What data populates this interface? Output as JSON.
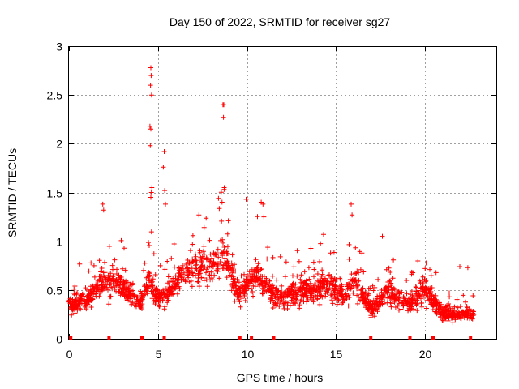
{
  "chart_data": {
    "type": "scatter",
    "title": "Day 150 of 2022, SRMTID for receiver sg27",
    "xlabel": "GPS time / hours",
    "ylabel": "SRMTID / TECUs",
    "xlim": [
      0,
      24
    ],
    "ylim": [
      0,
      3
    ],
    "xticks": [
      0,
      5,
      10,
      15,
      20
    ],
    "yticks": [
      0,
      0.5,
      1,
      1.5,
      2,
      2.5,
      3
    ],
    "xtick_labels": [
      "0",
      "5",
      "10",
      "15",
      "20"
    ],
    "ytick_labels": [
      "0",
      "0.5",
      "1",
      "1.5",
      "2",
      "2.5",
      "3"
    ],
    "grid": true,
    "marker": "+",
    "color": "#ff0000",
    "series": [
      {
        "name": "SRMTID",
        "x_start": 0.0,
        "x_end": 22.75,
        "baseline_profile": [
          [
            0.0,
            0.35
          ],
          [
            1.0,
            0.4
          ],
          [
            2.0,
            0.6
          ],
          [
            3.0,
            0.55
          ],
          [
            4.0,
            0.35
          ],
          [
            4.5,
            0.6
          ],
          [
            5.0,
            0.4
          ],
          [
            6.0,
            0.55
          ],
          [
            7.0,
            0.75
          ],
          [
            8.0,
            0.75
          ],
          [
            8.7,
            0.85
          ],
          [
            9.5,
            0.45
          ],
          [
            10.5,
            0.65
          ],
          [
            11.5,
            0.45
          ],
          [
            12.5,
            0.45
          ],
          [
            13.5,
            0.5
          ],
          [
            14.5,
            0.55
          ],
          [
            15.5,
            0.45
          ],
          [
            16.0,
            0.6
          ],
          [
            17.0,
            0.3
          ],
          [
            18.0,
            0.5
          ],
          [
            19.0,
            0.35
          ],
          [
            20.0,
            0.5
          ],
          [
            21.0,
            0.25
          ],
          [
            22.75,
            0.25
          ]
        ],
        "spikes": [
          {
            "x": 4.6,
            "y": 2.78
          },
          {
            "x": 4.62,
            "y": 2.7
          },
          {
            "x": 4.58,
            "y": 2.6
          },
          {
            "x": 4.64,
            "y": 2.5
          },
          {
            "x": 4.55,
            "y": 2.18
          },
          {
            "x": 4.6,
            "y": 2.15
          },
          {
            "x": 4.57,
            "y": 1.98
          },
          {
            "x": 4.66,
            "y": 1.55
          },
          {
            "x": 4.63,
            "y": 1.5
          },
          {
            "x": 4.6,
            "y": 1.45
          },
          {
            "x": 5.35,
            "y": 1.92
          },
          {
            "x": 5.3,
            "y": 1.76
          },
          {
            "x": 5.38,
            "y": 1.52
          },
          {
            "x": 5.42,
            "y": 1.38
          },
          {
            "x": 8.65,
            "y": 2.4
          },
          {
            "x": 8.7,
            "y": 2.4
          },
          {
            "x": 8.68,
            "y": 2.27
          },
          {
            "x": 8.72,
            "y": 1.55
          },
          {
            "x": 8.6,
            "y": 1.4
          },
          {
            "x": 9.95,
            "y": 1.43
          },
          {
            "x": 10.8,
            "y": 1.4
          },
          {
            "x": 10.9,
            "y": 1.38
          },
          {
            "x": 10.95,
            "y": 1.25
          },
          {
            "x": 1.9,
            "y": 1.38
          },
          {
            "x": 1.95,
            "y": 1.32
          },
          {
            "x": 15.85,
            "y": 1.38
          },
          {
            "x": 15.9,
            "y": 1.27
          },
          {
            "x": 7.3,
            "y": 1.27
          },
          {
            "x": 14.3,
            "y": 1.07
          },
          {
            "x": 17.6,
            "y": 1.05
          },
          {
            "x": 20.0,
            "y": 0.72
          },
          {
            "x": 21.95,
            "y": 0.74
          },
          {
            "x": 22.4,
            "y": 0.73
          }
        ],
        "zero_markers": [
          0.1,
          2.25,
          4.1,
          5.35,
          9.6,
          10.25,
          11.5,
          16.95,
          19.15,
          20.45,
          22.55
        ]
      }
    ]
  }
}
